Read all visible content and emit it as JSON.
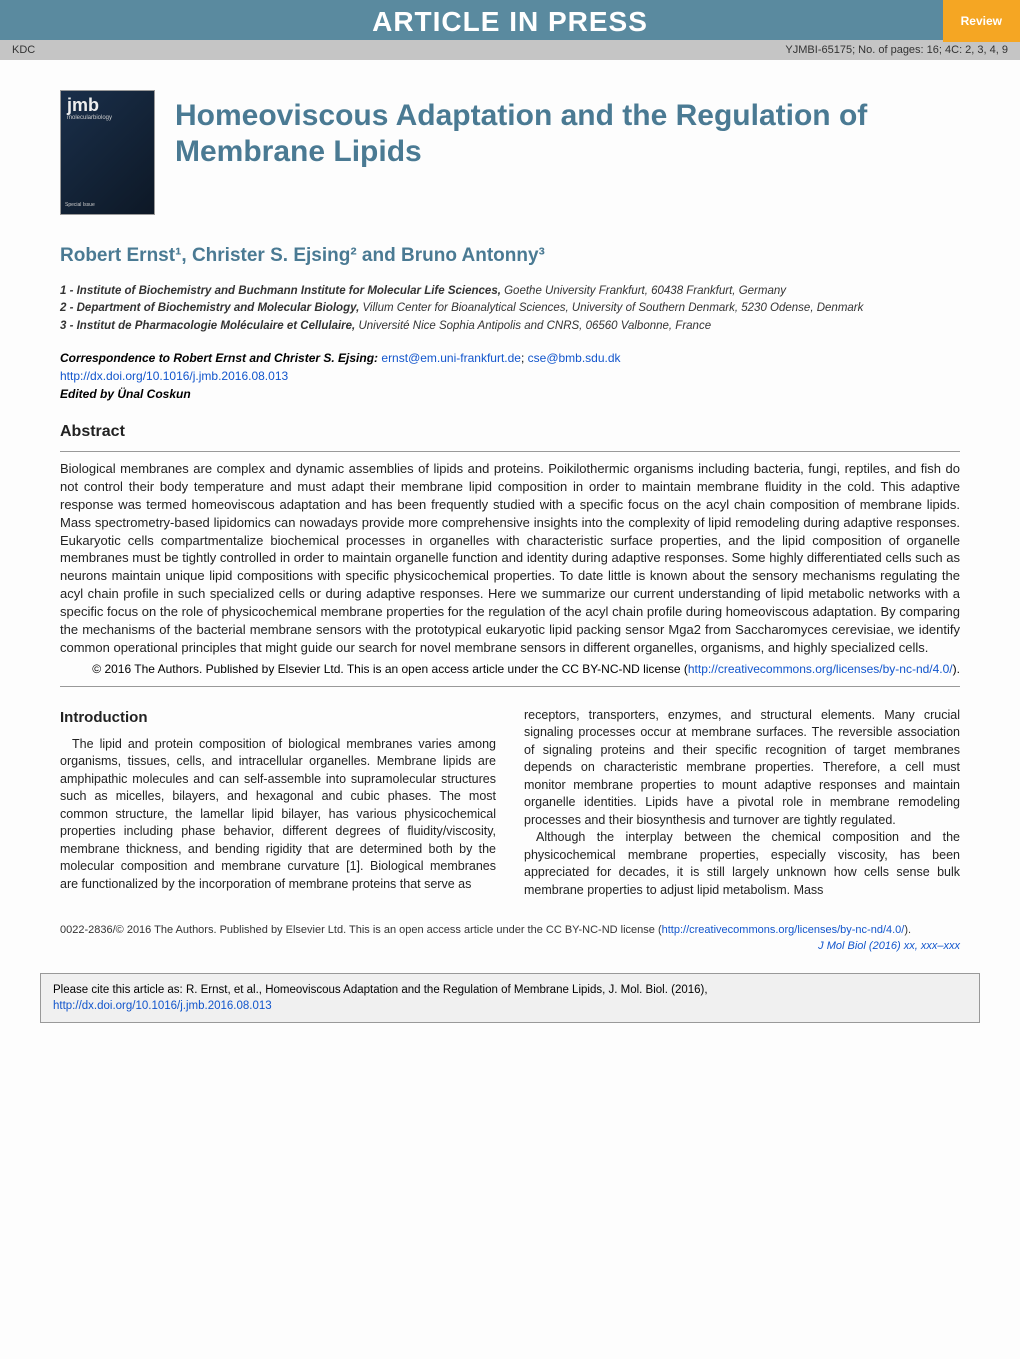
{
  "banner": {
    "title": "ARTICLE IN PRESS",
    "badge": "Review",
    "left_meta": "KDC",
    "right_meta": "YJMBI-65175; No. of pages: 16; 4C: 2, 3, 4, 9"
  },
  "cover": {
    "logo": "jmb",
    "logo_sub": "molecularbiology",
    "special": "Special Issue"
  },
  "article": {
    "title": "Homeoviscous Adaptation and the Regulation of Membrane Lipids",
    "authors": "Robert Ernst¹, Christer S. Ejsing² and Bruno Antonny³"
  },
  "affiliations": {
    "a1_label": "1 - Institute of Biochemistry and Buchmann Institute for Molecular Life Sciences,",
    "a1_text": " Goethe University Frankfurt, 60438 Frankfurt, Germany",
    "a2_label": "2 - Department of Biochemistry and Molecular Biology,",
    "a2_text": " Villum Center for Bioanalytical Sciences, University of Southern Denmark, 5230 Odense, Denmark",
    "a3_label": "3 - Institut de Pharmacologie Moléculaire et Cellulaire,",
    "a3_text": " Université Nice Sophia Antipolis and CNRS, 06560 Valbonne, France"
  },
  "correspondence": {
    "label": "Correspondence to Robert Ernst and Christer S. Ejsing:",
    "email1": "ernst@em.uni-frankfurt.de",
    "email2": "cse@bmb.sdu.dk",
    "doi": "http://dx.doi.org/10.1016/j.jmb.2016.08.013",
    "editor": "Edited by Ünal Coskun"
  },
  "abstract": {
    "heading": "Abstract",
    "text": "Biological membranes are complex and dynamic assemblies of lipids and proteins. Poikilothermic organisms including bacteria, fungi, reptiles, and fish do not control their body temperature and must adapt their membrane lipid composition in order to maintain membrane fluidity in the cold. This adaptive response was termed homeoviscous adaptation and has been frequently studied with a specific focus on the acyl chain composition of membrane lipids. Mass spectrometry-based lipidomics can nowadays provide more comprehensive insights into the complexity of lipid remodeling during adaptive responses. Eukaryotic cells compartmentalize biochemical processes in organelles with characteristic surface properties, and the lipid composition of organelle membranes must be tightly controlled in order to maintain organelle function and identity during adaptive responses. Some highly differentiated cells such as neurons maintain unique lipid compositions with specific physicochemical properties. To date little is known about the sensory mechanisms regulating the acyl chain profile in such specialized cells or during adaptive responses. Here we summarize our current understanding of lipid metabolic networks with a specific focus on the role of physicochemical membrane properties for the regulation of the acyl chain profile during homeoviscous adaptation. By comparing the mechanisms of the bacterial membrane sensors with the prototypical eukaryotic lipid packing sensor Mga2 from Saccharomyces cerevisiae, we identify common operational principles that might guide our search for novel membrane sensors in different organelles, organisms, and highly specialized cells.",
    "copyright_pre": "© 2016 The Authors. Published by Elsevier Ltd. This is an open access article under the CC BY-NC-ND license (",
    "copyright_link": "http://creativecommons.org/licenses/by-nc-nd/4.0/",
    "copyright_post": ")."
  },
  "intro": {
    "heading": "Introduction",
    "col1_p1": "The lipid and protein composition of biological membranes varies among organisms, tissues, cells, and intracellular organelles. Membrane lipids are amphipathic molecules and can self-assemble into supramolecular structures such as micelles, bilayers, and hexagonal and cubic phases. The most common structure, the lamellar lipid bilayer, has various physicochemical properties including phase behavior, different degrees of fluidity/viscosity, membrane thickness, and bending rigidity that are determined both by the molecular composition and membrane curvature [1]. Biological membranes are functionalized by the incorporation of membrane proteins that serve as",
    "ref1": "[1]",
    "col2_p1": "receptors, transporters, enzymes, and structural elements. Many crucial signaling processes occur at membrane surfaces. The reversible association of signaling proteins and their specific recognition of target membranes depends on characteristic membrane properties. Therefore, a cell must monitor membrane properties to mount adaptive responses and maintain organelle identities. Lipids have a pivotal role in membrane remodeling processes and their biosynthesis and turnover are tightly regulated.",
    "col2_p2": "Although the interplay between the chemical composition and the physicochemical membrane properties, especially viscosity, has been appreciated for decades, it is still largely unknown how cells sense bulk membrane properties to adjust lipid metabolism. Mass"
  },
  "footer": {
    "copyright_pre": "0022-2836/© 2016 The Authors. Published by Elsevier Ltd. This is an open access article under the CC BY-NC-ND license (",
    "copyright_link": "http://creativecommons.org/licenses/by-nc-nd/4.0/",
    "copyright_post": ").",
    "journal": "J Mol Biol (2016) xx, xxx–xxx"
  },
  "citation": {
    "text_pre": "Please cite this article as: R. Ernst, et al., Homeoviscous Adaptation and the Regulation of Membrane Lipids, J. Mol. Biol. (2016), ",
    "link": "http://dx.doi.org/10.1016/j.jmb.2016.08.013"
  },
  "colors": {
    "banner_bg": "#5a8a9f",
    "badge_bg": "#f5a623",
    "link": "#1155cc",
    "heading": "#4a7a93"
  }
}
